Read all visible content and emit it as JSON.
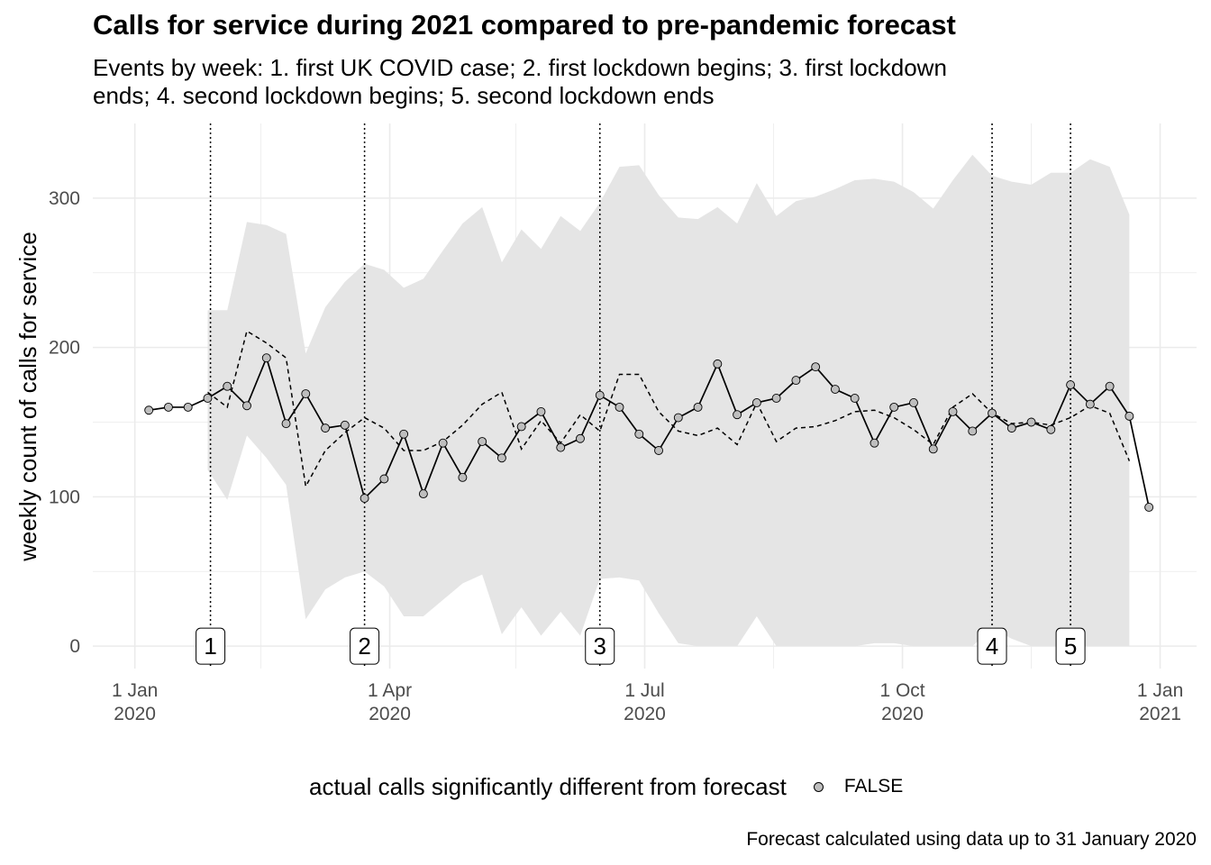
{
  "title": "Calls for service during 2021 compared to pre-pandemic forecast",
  "subtitle": "Events by week: 1. first UK COVID case; 2. first lockdown begins; 3. first lockdown ends; 4. second lockdown begins; 5. second lockdown ends",
  "caption": "Forecast calculated using data up to 31 January 2020",
  "legend": {
    "title": "actual calls significantly different from forecast",
    "label": "FALSE"
  },
  "colors": {
    "ribbon": "#e5e5e5",
    "actual_line": "#000000",
    "point_fill": "#bebebe",
    "grid": "#ebebeb"
  },
  "chart_data": {
    "type": "line",
    "xlabel": "",
    "ylabel": "weekly count of calls for service",
    "xlim": [
      "2019-12-17",
      "2021-01-14"
    ],
    "ylim": [
      -15,
      350
    ],
    "x_ticks": [
      {
        "date": "2020-01-01",
        "label": [
          "1 Jan",
          "2020"
        ]
      },
      {
        "date": "2020-04-01",
        "label": [
          "1 Apr",
          "2020"
        ]
      },
      {
        "date": "2020-07-01",
        "label": [
          "1 Jul",
          "2020"
        ]
      },
      {
        "date": "2020-10-01",
        "label": [
          "1 Oct",
          "2020"
        ]
      },
      {
        "date": "2021-01-01",
        "label": [
          "1 Jan",
          "2021"
        ]
      }
    ],
    "y_ticks": [
      0,
      100,
      200,
      300
    ],
    "grid": true,
    "legend_position": "bottom",
    "events": [
      {
        "label": "1",
        "date": "2020-01-28"
      },
      {
        "label": "2",
        "date": "2020-03-23"
      },
      {
        "label": "3",
        "date": "2020-06-15"
      },
      {
        "label": "4",
        "date": "2020-11-02"
      },
      {
        "label": "5",
        "date": "2020-11-30"
      }
    ],
    "actual": {
      "name": "actual calls",
      "x": [
        "2020-01-06",
        "2020-01-13",
        "2020-01-20",
        "2020-01-27",
        "2020-02-03",
        "2020-02-10",
        "2020-02-17",
        "2020-02-24",
        "2020-03-02",
        "2020-03-09",
        "2020-03-16",
        "2020-03-23",
        "2020-03-30",
        "2020-04-06",
        "2020-04-13",
        "2020-04-20",
        "2020-04-27",
        "2020-05-04",
        "2020-05-11",
        "2020-05-18",
        "2020-05-25",
        "2020-06-01",
        "2020-06-08",
        "2020-06-15",
        "2020-06-22",
        "2020-06-29",
        "2020-07-06",
        "2020-07-13",
        "2020-07-20",
        "2020-07-27",
        "2020-08-03",
        "2020-08-10",
        "2020-08-17",
        "2020-08-24",
        "2020-08-31",
        "2020-09-07",
        "2020-09-14",
        "2020-09-21",
        "2020-09-28",
        "2020-10-05",
        "2020-10-12",
        "2020-10-19",
        "2020-10-26",
        "2020-11-02",
        "2020-11-09",
        "2020-11-16",
        "2020-11-23",
        "2020-11-30",
        "2020-12-07",
        "2020-12-14",
        "2020-12-21",
        "2020-12-28"
      ],
      "y": [
        158,
        160,
        160,
        166,
        174,
        161,
        193,
        149,
        169,
        146,
        148,
        99,
        112,
        142,
        102,
        136,
        113,
        137,
        126,
        147,
        157,
        133,
        139,
        168,
        160,
        142,
        131,
        153,
        160,
        189,
        155,
        163,
        166,
        178,
        187,
        172,
        166,
        136,
        160,
        163,
        132,
        157,
        144,
        156,
        146,
        150,
        145,
        175,
        162,
        174,
        154,
        93
      ]
    },
    "forecast": {
      "name": "forecast",
      "x": [
        "2020-01-27",
        "2020-02-03",
        "2020-02-10",
        "2020-02-17",
        "2020-02-24",
        "2020-03-02",
        "2020-03-09",
        "2020-03-16",
        "2020-03-23",
        "2020-03-30",
        "2020-04-06",
        "2020-04-13",
        "2020-04-20",
        "2020-04-27",
        "2020-05-04",
        "2020-05-11",
        "2020-05-18",
        "2020-05-25",
        "2020-06-01",
        "2020-06-08",
        "2020-06-15",
        "2020-06-22",
        "2020-06-29",
        "2020-07-06",
        "2020-07-13",
        "2020-07-20",
        "2020-07-27",
        "2020-08-03",
        "2020-08-10",
        "2020-08-17",
        "2020-08-24",
        "2020-08-31",
        "2020-09-07",
        "2020-09-14",
        "2020-09-21",
        "2020-09-28",
        "2020-10-05",
        "2020-10-12",
        "2020-10-19",
        "2020-10-26",
        "2020-11-02",
        "2020-11-09",
        "2020-11-16",
        "2020-11-23",
        "2020-11-30",
        "2020-12-07",
        "2020-12-14",
        "2020-12-21"
      ],
      "y": [
        170,
        160,
        211,
        203,
        193,
        107,
        131,
        143,
        153,
        146,
        131,
        131,
        137,
        148,
        162,
        170,
        132,
        151,
        136,
        155,
        144,
        182,
        182,
        157,
        144,
        141,
        146,
        135,
        163,
        137,
        146,
        147,
        151,
        157,
        158,
        153,
        145,
        135,
        160,
        169,
        156,
        149,
        150,
        148,
        153,
        161,
        156,
        124
      ],
      "lower": [
        118,
        98,
        141,
        126,
        108,
        18,
        38,
        46,
        50,
        40,
        20,
        20,
        31,
        42,
        48,
        8,
        26,
        7,
        23,
        7,
        45,
        46,
        44,
        22,
        2,
        0,
        0,
        0,
        20,
        0,
        0,
        0,
        0,
        0,
        2,
        2,
        0,
        0,
        0,
        0,
        12,
        5,
        0,
        0,
        0,
        0,
        0,
        0
      ],
      "upper": [
        225,
        225,
        284,
        282,
        276,
        196,
        227,
        244,
        256,
        252,
        240,
        246,
        265,
        283,
        294,
        257,
        279,
        266,
        288,
        278,
        297,
        321,
        322,
        302,
        287,
        286,
        294,
        283,
        310,
        288,
        298,
        301,
        306,
        312,
        313,
        311,
        304,
        293,
        312,
        329,
        315,
        311,
        309,
        317,
        317,
        326,
        321,
        289
      ]
    }
  }
}
